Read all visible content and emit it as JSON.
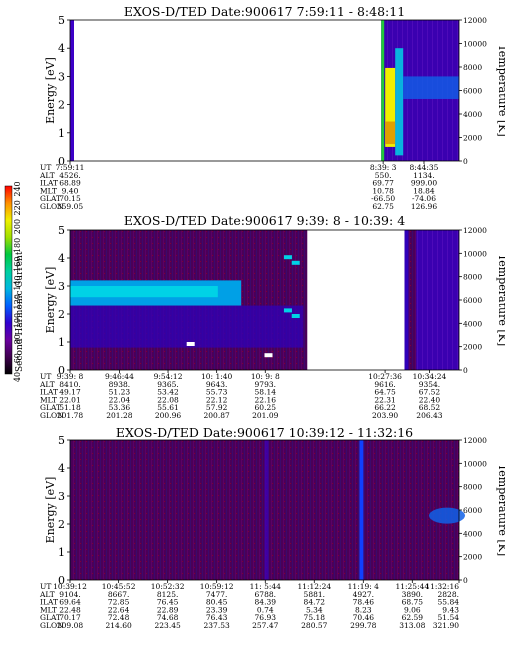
{
  "colors": {
    "background": "#4a0058",
    "band": "#3c00c8",
    "highlight": "#00d2e6",
    "hot": "#f0f000",
    "warm": "#21c83a",
    "white": "#ffffff",
    "red_spot": "#e01010"
  },
  "colorbar": {
    "title": "Second Harmonic Current",
    "ticks": [
      "40",
      "60",
      "80",
      "100",
      "120",
      "140",
      "160",
      "180",
      "200",
      "220",
      "240"
    ],
    "stops": [
      "#000000",
      "#400050",
      "#6a00a0",
      "#3000d0",
      "#0060ff",
      "#00b8e0",
      "#00d0a0",
      "#00c840",
      "#a0e000",
      "#f0f000",
      "#ff9000",
      "#ff0000"
    ]
  },
  "row_labels": [
    "UT",
    "ALT",
    "ILAT",
    "MLT",
    "GLAT",
    "GLON"
  ],
  "chart_data": [
    {
      "type": "heatmap",
      "title": "EXOS-D/TED   Date:900617  7:59:11 - 8:48:11",
      "ylabel": "Energy [eV]",
      "y2label": "Temperature [K]",
      "ylim": [
        0,
        5
      ],
      "y2lim": [
        0,
        12000
      ],
      "yticks": [
        "0",
        "1",
        "2",
        "3",
        "4",
        "5"
      ],
      "y2ticks": [
        "0",
        "2000",
        "4000",
        "6000",
        "8000",
        "10000",
        "12000"
      ],
      "columns": [
        [
          "7:59:11",
          "4526.",
          "68.89",
          "9.40",
          "70.15",
          "359.05"
        ],
        [
          "8:39: 3",
          "550.",
          "69.77",
          "10.78",
          "-66.50",
          "62.75"
        ],
        [
          "8:44:35",
          "1134.",
          "999.00",
          "18.84",
          "-74.06",
          "126.96"
        ]
      ],
      "column_frac": [
        0.0,
        0.805,
        0.91
      ]
    },
    {
      "type": "heatmap",
      "title": "EXOS-D/TED   Date:900617  9:39: 8 - 10:39: 4",
      "ylabel": "Energy [eV]",
      "y2label": "Temperature [K]",
      "ylim": [
        0,
        5
      ],
      "y2lim": [
        0,
        12000
      ],
      "yticks": [
        "0",
        "1",
        "2",
        "3",
        "4",
        "5"
      ],
      "y2ticks": [
        "0",
        "2000",
        "4000",
        "6000",
        "8000",
        "10000",
        "12000"
      ],
      "columns": [
        [
          "9:39: 8",
          "8410.",
          "49.17",
          "22.01",
          "51.18",
          "201.78"
        ],
        [
          "9:46:44",
          "8938.",
          "51.23",
          "22.04",
          "53.36",
          "201.28"
        ],
        [
          "9:54:12",
          "9365.",
          "53.42",
          "22.08",
          "55.61",
          "200.96"
        ],
        [
          "10: 1:40",
          "9643.",
          "55.73",
          "22.12",
          "57.92",
          "200.87"
        ],
        [
          "10: 9: 8",
          "9793.",
          "58.14",
          "22.16",
          "60.25",
          "201.09"
        ],
        [
          "10:27:36",
          "9616.",
          "64.75",
          "22.31",
          "66.22",
          "203.90"
        ],
        [
          "10:34:24",
          "9354.",
          "67.52",
          "22.40",
          "68.52",
          "206.43"
        ]
      ],
      "column_frac": [
        0.0,
        0.127,
        0.252,
        0.377,
        0.502,
        0.81,
        0.924
      ]
    },
    {
      "type": "heatmap",
      "title": "EXOS-D/TED   Date:900617  10:39:12 - 11:32:16",
      "ylabel": "Energy [eV]",
      "y2label": "Temperature [K]",
      "ylim": [
        0,
        5
      ],
      "y2lim": [
        0,
        12000
      ],
      "yticks": [
        "0",
        "1",
        "2",
        "3",
        "4",
        "5"
      ],
      "y2ticks": [
        "0",
        "2000",
        "4000",
        "6000",
        "8000",
        "10000",
        "12000"
      ],
      "columns": [
        [
          "10:39:12",
          "9104.",
          "69.64",
          "22.48",
          "70.17",
          "209.08"
        ],
        [
          "10:45:52",
          "8667.",
          "72.85",
          "22.64",
          "72.48",
          "214.60"
        ],
        [
          "10:52:32",
          "8125.",
          "76.45",
          "22.89",
          "74.68",
          "223.45"
        ],
        [
          "10:59:12",
          "7477.",
          "80.45",
          "23.39",
          "76.43",
          "237.53"
        ],
        [
          "11: 5:44",
          "6788.",
          "84.39",
          "0.74",
          "76.93",
          "257.47"
        ],
        [
          "11:12:24",
          "5881.",
          "84.72",
          "5.34",
          "75.18",
          "280.57"
        ],
        [
          "11:19: 4",
          "4927.",
          "78.46",
          "8.23",
          "70.46",
          "299.78"
        ],
        [
          "11:25:44",
          "3890.",
          "68.75",
          "9.06",
          "62.59",
          "313.08"
        ],
        [
          "11:32:16",
          "2828.",
          "55.84",
          "9.43",
          "51.54",
          "321.90"
        ]
      ],
      "column_frac": [
        0.0,
        0.125,
        0.251,
        0.377,
        0.502,
        0.628,
        0.754,
        0.88,
        1.0
      ]
    }
  ]
}
